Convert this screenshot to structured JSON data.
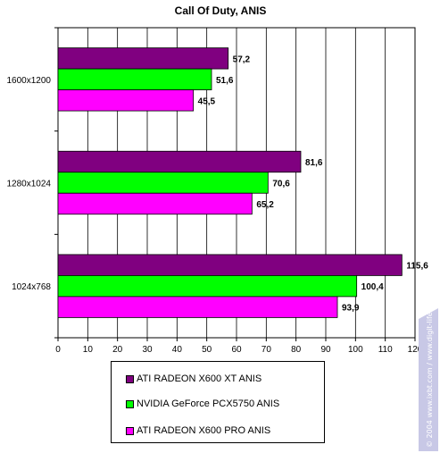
{
  "chart_data": {
    "type": "bar",
    "orientation": "horizontal",
    "title": "Call Of Duty, ANIS",
    "categories": [
      "1600x1200",
      "1280x1024",
      "1024x768"
    ],
    "series": [
      {
        "name": "ATI  RADEON X600 XT ANIS",
        "color": "#800080",
        "values": [
          57.2,
          81.6,
          115.6
        ],
        "labels": [
          "57,2",
          "81,6",
          "115,6"
        ]
      },
      {
        "name": "NVIDIA GeForce PCX5750 ANIS",
        "color": "#00ff00",
        "values": [
          51.6,
          70.6,
          100.4
        ],
        "labels": [
          "51,6",
          "70,6",
          "100,4"
        ]
      },
      {
        "name": "ATI RADEON X600 PRO ANIS",
        "color": "#ff00ff",
        "values": [
          45.5,
          65.2,
          93.9
        ],
        "labels": [
          "45,5",
          "65,2",
          "93,9"
        ]
      }
    ],
    "xlim": [
      0,
      120
    ],
    "xticks": [
      "0",
      "10",
      "20",
      "30",
      "40",
      "50",
      "60",
      "70",
      "80",
      "90",
      "100",
      "110",
      "120"
    ],
    "grid": true,
    "legend_position": "bottom"
  },
  "watermark": "© 2004 www.ixbt.com / www.digit-life.com"
}
